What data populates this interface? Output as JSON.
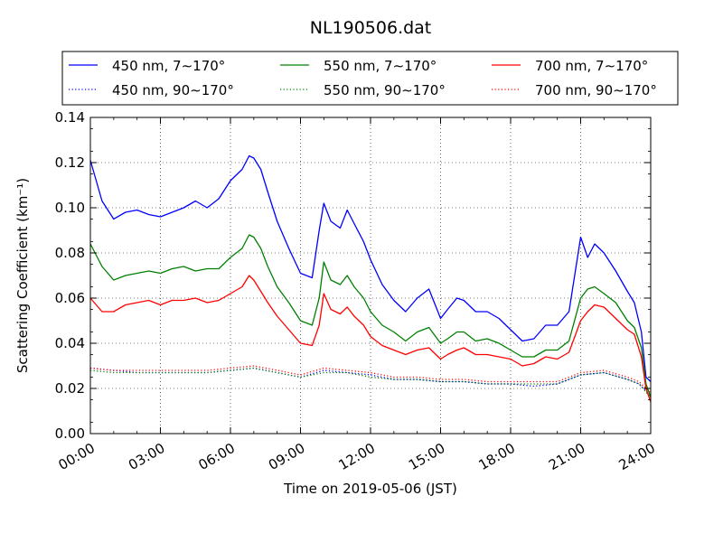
{
  "chart_data": {
    "type": "line",
    "title": "NL190506.dat",
    "xlabel": "Time on 2019-05-06 (JST)",
    "ylabel": "Scattering Coefficient (km⁻¹)",
    "ylim": [
      0.0,
      0.14
    ],
    "xlim_hours": [
      0,
      24
    ],
    "xticks": [
      "00:00",
      "03:00",
      "06:00",
      "09:00",
      "12:00",
      "15:00",
      "18:00",
      "21:00",
      "24:00"
    ],
    "yticks": [
      "0.00",
      "0.02",
      "0.04",
      "0.06",
      "0.08",
      "0.10",
      "0.12",
      "0.14"
    ],
    "grid": true,
    "legend_position": "top, above plot",
    "series": [
      {
        "name": "450 nm, 7∼170°",
        "color": "#0000ff",
        "style": "solid",
        "x": [
          0,
          0.5,
          1,
          1.5,
          2,
          2.5,
          3,
          3.5,
          4,
          4.5,
          5,
          5.5,
          6,
          6.5,
          6.8,
          7,
          7.3,
          7.6,
          8,
          8.5,
          9,
          9.5,
          9.8,
          10,
          10.3,
          10.7,
          11,
          11.3,
          11.7,
          12,
          12.5,
          13,
          13.5,
          14,
          14.5,
          15,
          15.3,
          15.7,
          16,
          16.5,
          17,
          17.5,
          18,
          18.5,
          19,
          19.5,
          20,
          20.5,
          21,
          21.3,
          21.6,
          22,
          22.5,
          23,
          23.3,
          23.6,
          23.8,
          24
        ],
        "y": [
          0.121,
          0.103,
          0.095,
          0.098,
          0.099,
          0.097,
          0.096,
          0.098,
          0.1,
          0.103,
          0.1,
          0.104,
          0.112,
          0.117,
          0.123,
          0.122,
          0.117,
          0.107,
          0.094,
          0.082,
          0.071,
          0.069,
          0.09,
          0.102,
          0.094,
          0.091,
          0.099,
          0.093,
          0.085,
          0.077,
          0.066,
          0.059,
          0.054,
          0.06,
          0.064,
          0.051,
          0.055,
          0.06,
          0.059,
          0.054,
          0.054,
          0.051,
          0.046,
          0.041,
          0.042,
          0.048,
          0.048,
          0.054,
          0.087,
          0.078,
          0.084,
          0.08,
          0.072,
          0.063,
          0.058,
          0.045,
          0.025,
          0.023
        ]
      },
      {
        "name": "550 nm, 7∼170°",
        "color": "#008000",
        "style": "solid",
        "x": [
          0,
          0.5,
          1,
          1.5,
          2,
          2.5,
          3,
          3.5,
          4,
          4.5,
          5,
          5.5,
          6,
          6.5,
          6.8,
          7,
          7.3,
          7.6,
          8,
          8.5,
          9,
          9.5,
          9.8,
          10,
          10.3,
          10.7,
          11,
          11.3,
          11.7,
          12,
          12.5,
          13,
          13.5,
          14,
          14.5,
          15,
          15.3,
          15.7,
          16,
          16.5,
          17,
          17.5,
          18,
          18.5,
          19,
          19.5,
          20,
          20.5,
          21,
          21.3,
          21.6,
          22,
          22.5,
          23,
          23.3,
          23.6,
          23.8,
          24
        ],
        "y": [
          0.084,
          0.074,
          0.068,
          0.07,
          0.071,
          0.072,
          0.071,
          0.073,
          0.074,
          0.072,
          0.073,
          0.073,
          0.078,
          0.082,
          0.088,
          0.087,
          0.082,
          0.074,
          0.065,
          0.058,
          0.05,
          0.048,
          0.06,
          0.076,
          0.068,
          0.066,
          0.07,
          0.065,
          0.06,
          0.054,
          0.048,
          0.045,
          0.041,
          0.045,
          0.047,
          0.04,
          0.042,
          0.045,
          0.045,
          0.041,
          0.042,
          0.04,
          0.037,
          0.034,
          0.034,
          0.037,
          0.037,
          0.041,
          0.06,
          0.064,
          0.065,
          0.062,
          0.058,
          0.05,
          0.047,
          0.038,
          0.022,
          0.016
        ]
      },
      {
        "name": "700 nm, 7∼170°",
        "color": "#ff0000",
        "style": "solid",
        "x": [
          0,
          0.5,
          1,
          1.5,
          2,
          2.5,
          3,
          3.5,
          4,
          4.5,
          5,
          5.5,
          6,
          6.5,
          6.8,
          7,
          7.3,
          7.6,
          8,
          8.5,
          9,
          9.5,
          9.8,
          10,
          10.3,
          10.7,
          11,
          11.3,
          11.7,
          12,
          12.5,
          13,
          13.5,
          14,
          14.5,
          15,
          15.3,
          15.7,
          16,
          16.5,
          17,
          17.5,
          18,
          18.5,
          19,
          19.5,
          20,
          20.5,
          21,
          21.3,
          21.6,
          22,
          22.5,
          23,
          23.3,
          23.6,
          23.8,
          24
        ],
        "y": [
          0.06,
          0.054,
          0.054,
          0.057,
          0.058,
          0.059,
          0.057,
          0.059,
          0.059,
          0.06,
          0.058,
          0.059,
          0.062,
          0.065,
          0.07,
          0.068,
          0.063,
          0.058,
          0.052,
          0.046,
          0.04,
          0.039,
          0.048,
          0.062,
          0.055,
          0.053,
          0.056,
          0.052,
          0.048,
          0.043,
          0.039,
          0.037,
          0.035,
          0.037,
          0.038,
          0.033,
          0.035,
          0.037,
          0.038,
          0.035,
          0.035,
          0.034,
          0.033,
          0.03,
          0.031,
          0.034,
          0.033,
          0.036,
          0.05,
          0.054,
          0.057,
          0.056,
          0.051,
          0.046,
          0.044,
          0.034,
          0.02,
          0.014
        ]
      },
      {
        "name": "450 nm, 90∼170°",
        "color": "#0000ff",
        "style": "dotted",
        "x": [
          0,
          1,
          2,
          3,
          4,
          5,
          6,
          7,
          8,
          9,
          10,
          11,
          12,
          13,
          14,
          15,
          16,
          17,
          18,
          19,
          20,
          21,
          22,
          23,
          23.5,
          24
        ],
        "y": [
          0.029,
          0.028,
          0.027,
          0.027,
          0.027,
          0.027,
          0.028,
          0.029,
          0.027,
          0.025,
          0.028,
          0.027,
          0.026,
          0.024,
          0.024,
          0.023,
          0.023,
          0.022,
          0.022,
          0.021,
          0.022,
          0.026,
          0.027,
          0.024,
          0.022,
          0.017
        ]
      },
      {
        "name": "550 nm, 90∼170°",
        "color": "#008000",
        "style": "dotted",
        "x": [
          0,
          1,
          2,
          3,
          4,
          5,
          6,
          7,
          8,
          9,
          10,
          11,
          12,
          13,
          14,
          15,
          16,
          17,
          18,
          19,
          20,
          21,
          22,
          23,
          23.5,
          24
        ],
        "y": [
          0.028,
          0.027,
          0.027,
          0.027,
          0.027,
          0.027,
          0.028,
          0.029,
          0.027,
          0.025,
          0.027,
          0.027,
          0.025,
          0.024,
          0.024,
          0.023,
          0.023,
          0.022,
          0.022,
          0.022,
          0.022,
          0.026,
          0.027,
          0.024,
          0.022,
          0.016
        ]
      },
      {
        "name": "700 nm, 90∼170°",
        "color": "#ff0000",
        "style": "dotted",
        "x": [
          0,
          1,
          2,
          3,
          4,
          5,
          6,
          7,
          8,
          9,
          10,
          11,
          12,
          13,
          14,
          15,
          16,
          17,
          18,
          19,
          20,
          21,
          22,
          23,
          23.5,
          24
        ],
        "y": [
          0.029,
          0.028,
          0.028,
          0.028,
          0.028,
          0.028,
          0.029,
          0.03,
          0.028,
          0.026,
          0.029,
          0.028,
          0.027,
          0.025,
          0.025,
          0.024,
          0.024,
          0.023,
          0.023,
          0.023,
          0.023,
          0.027,
          0.028,
          0.025,
          0.023,
          0.018
        ]
      }
    ]
  }
}
